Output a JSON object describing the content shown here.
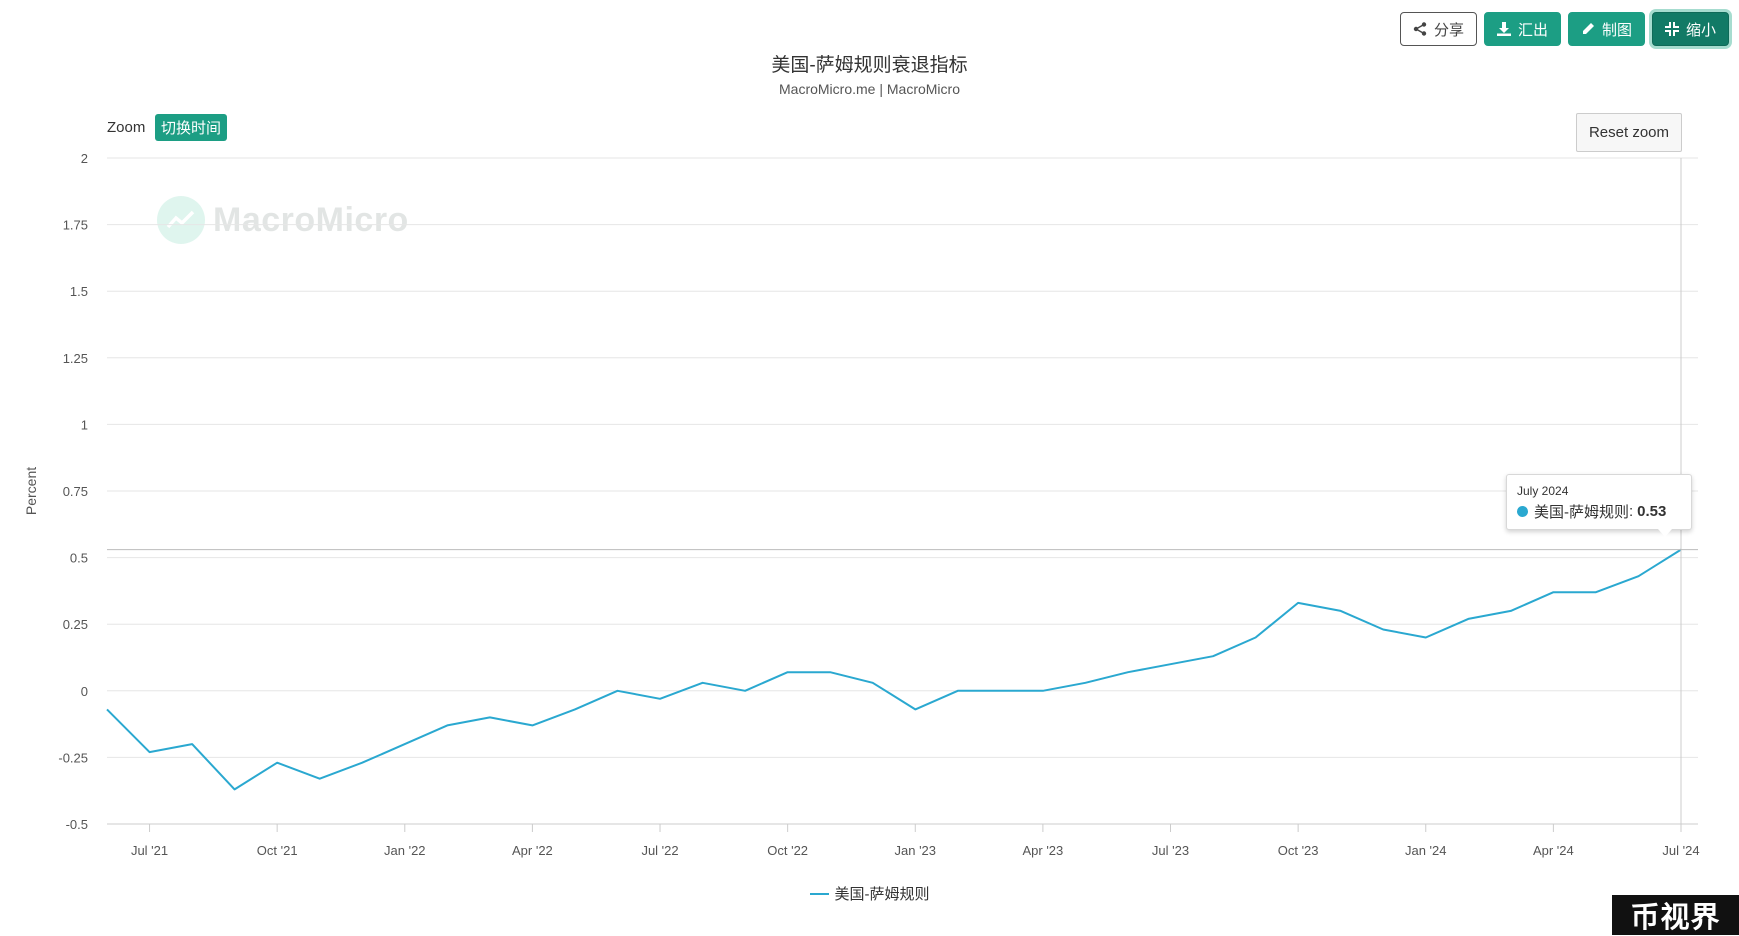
{
  "toolbar": {
    "share_label": "分享",
    "export_label": "汇出",
    "draw_label": "制图",
    "shrink_label": "缩小"
  },
  "zoom": {
    "label": "Zoom",
    "toggle_label": "切换时间",
    "reset_label": "Reset zoom"
  },
  "watermark": {
    "text": "MacroMicro"
  },
  "tooltip": {
    "date": "July 2024",
    "series": "美国-萨姆规则",
    "value": "0.53"
  },
  "corner_badge": "币视界",
  "colors": {
    "series_line": "#2aa8d0",
    "accent_button": "#1c9e84",
    "grid": "#e6e6e6"
  },
  "chart_data": {
    "type": "line",
    "title": "美国-萨姆规则衰退指标",
    "subtitle": "MacroMicro.me | MacroMicro",
    "xlabel": "",
    "ylabel": "Percent",
    "ylim": [
      -0.5,
      2
    ],
    "yticks": [
      "2",
      "1.75",
      "1.5",
      "1.25",
      "1",
      "0.75",
      "0.5",
      "0.25",
      "0",
      "-0.25",
      "-0.5"
    ],
    "xticks": [
      {
        "label": "Jul '21",
        "date": "2021-07"
      },
      {
        "label": "Oct '21",
        "date": "2021-10"
      },
      {
        "label": "Jan '22",
        "date": "2022-01"
      },
      {
        "label": "Apr '22",
        "date": "2022-04"
      },
      {
        "label": "Jul '22",
        "date": "2022-07"
      },
      {
        "label": "Oct '22",
        "date": "2022-10"
      },
      {
        "label": "Jan '23",
        "date": "2023-01"
      },
      {
        "label": "Apr '23",
        "date": "2023-04"
      },
      {
        "label": "Jul '23",
        "date": "2023-07"
      },
      {
        "label": "Oct '23",
        "date": "2023-10"
      },
      {
        "label": "Jan '24",
        "date": "2024-01"
      },
      {
        "label": "Apr '24",
        "date": "2024-04"
      },
      {
        "label": "Jul '24",
        "date": "2024-07"
      }
    ],
    "x_range": [
      "2021-06",
      "2024-07"
    ],
    "grid": true,
    "legend_position": "bottom-center",
    "series": [
      {
        "name": "美国-萨姆规则",
        "x": [
          "2021-06",
          "2021-07",
          "2021-08",
          "2021-09",
          "2021-10",
          "2021-11",
          "2021-12",
          "2022-01",
          "2022-02",
          "2022-03",
          "2022-04",
          "2022-05",
          "2022-06",
          "2022-07",
          "2022-08",
          "2022-09",
          "2022-10",
          "2022-11",
          "2022-12",
          "2023-01",
          "2023-02",
          "2023-03",
          "2023-04",
          "2023-05",
          "2023-06",
          "2023-07",
          "2023-08",
          "2023-09",
          "2023-10",
          "2023-11",
          "2023-12",
          "2024-01",
          "2024-02",
          "2024-03",
          "2024-04",
          "2024-05",
          "2024-06",
          "2024-07"
        ],
        "values": [
          -0.07,
          -0.23,
          -0.2,
          -0.37,
          -0.27,
          -0.33,
          -0.27,
          -0.2,
          -0.13,
          -0.1,
          -0.13,
          -0.07,
          0.0,
          -0.03,
          0.03,
          0.0,
          0.07,
          0.07,
          0.03,
          -0.07,
          0.0,
          0.0,
          0.0,
          0.03,
          0.07,
          0.1,
          0.13,
          0.2,
          0.33,
          0.3,
          0.23,
          0.2,
          0.27,
          0.3,
          0.37,
          0.37,
          0.43,
          0.53
        ]
      }
    ]
  }
}
